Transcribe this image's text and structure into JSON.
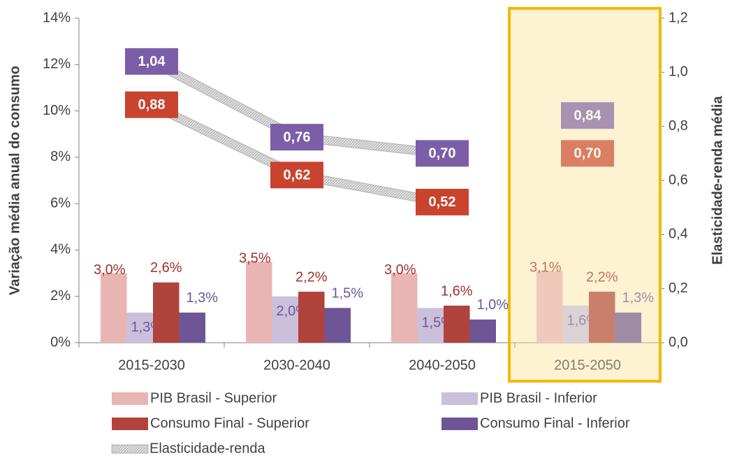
{
  "chart_data": {
    "type": "bar",
    "categories": [
      "2015-2030",
      "2030-2040",
      "2040-2050",
      "2015-2050"
    ],
    "ylabel": "Variação média anual do consumo",
    "y2label": "Elasticidade-renda média",
    "ylim": [
      0,
      14
    ],
    "yticks": [
      {
        "value": 0,
        "label": "0%"
      },
      {
        "value": 2,
        "label": "2%"
      },
      {
        "value": 4,
        "label": "4%"
      },
      {
        "value": 6,
        "label": "6%"
      },
      {
        "value": 8,
        "label": "8%"
      },
      {
        "value": 10,
        "label": "10%"
      },
      {
        "value": 12,
        "label": "12%"
      },
      {
        "value": 14,
        "label": "14%"
      }
    ],
    "y2lim": [
      0,
      1.2
    ],
    "y2ticks": [
      {
        "value": 0,
        "label": "0,0"
      },
      {
        "value": 0.2,
        "label": "0,2"
      },
      {
        "value": 0.4,
        "label": "0,4"
      },
      {
        "value": 0.6,
        "label": "0,6"
      },
      {
        "value": 0.8,
        "label": "0,8"
      },
      {
        "value": 1.0,
        "label": "1,0"
      },
      {
        "value": 1.2,
        "label": "1,2"
      }
    ],
    "highlight_category_index": 3,
    "series": [
      {
        "name": "PIB Brasil - Superior",
        "color": "#e8b5b3",
        "label_color": "#a0302c",
        "values": [
          3.0,
          3.5,
          3.0,
          3.1
        ],
        "value_labels": [
          "3,0%",
          "3,5%",
          "3,0%",
          "3,1%"
        ]
      },
      {
        "name": "PIB Brasil - Inferior",
        "color": "#cbc0dc",
        "label_color": "#6e5696",
        "values": [
          1.3,
          2.0,
          1.5,
          1.6
        ],
        "value_labels": [
          "1,3%",
          "2,0%",
          "1,5%",
          "1,6%"
        ]
      },
      {
        "name": "Consumo Final - Superior",
        "color": "#b0433c",
        "label_color": "#a0302c",
        "values": [
          2.6,
          2.2,
          1.6,
          2.2
        ],
        "value_labels": [
          "2,6%",
          "2,2%",
          "1,6%",
          "2,2%"
        ]
      },
      {
        "name": "Consumo Final - Inferior",
        "color": "#6e5696",
        "label_color": "#6e5696",
        "values": [
          1.3,
          1.5,
          1.0,
          1.3
        ],
        "value_labels": [
          "1,3%",
          "1,5%",
          "1,0%",
          "1,3%"
        ]
      }
    ],
    "elasticity": {
      "name": "Elasticidade-renda",
      "lines": [
        {
          "color": "#c9432f",
          "axis": "y2",
          "values": [
            0.88,
            0.62,
            0.52,
            0.7
          ],
          "value_labels": [
            "0,88",
            "0,62",
            "0,52",
            "0,70"
          ]
        },
        {
          "color": "#7b5ea7",
          "axis": "y2",
          "values": [
            1.04,
            0.76,
            0.7,
            0.84
          ],
          "value_labels": [
            "1,04",
            "0,76",
            "0,70",
            "0,84"
          ]
        }
      ]
    }
  }
}
